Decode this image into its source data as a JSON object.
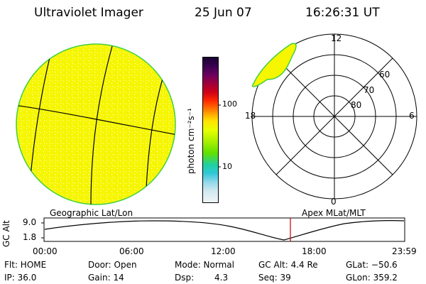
{
  "header": {
    "title": "Ultraviolet Imager",
    "date": "25 Jun 07",
    "time": "16:26:31 UT"
  },
  "colorbar": {
    "unit_label": "photon cm⁻²s⁻¹",
    "ticks": [
      "100",
      "10"
    ],
    "colors": [
      "#1a0033",
      "#3a0050",
      "#6a0060",
      "#a0003a",
      "#d00018",
      "#ff2a00",
      "#ff7a00",
      "#ffb400",
      "#ffe400",
      "#e8ff00",
      "#a8f000",
      "#60e000",
      "#20d0a0",
      "#30c8d8",
      "#90d8e8",
      "#d0e8f0",
      "#f0f4f8"
    ]
  },
  "left_map": {
    "caption": "Geographic Lat/Lon",
    "fill_color": "#f6f600",
    "edge_color": "#40d040"
  },
  "polar_plot": {
    "caption": "Apex MLat/MLT",
    "mlt_labels": {
      "top": "12",
      "bottom": "0",
      "left": "18",
      "right": "6"
    },
    "lat_labels": [
      "60",
      "70",
      "80"
    ]
  },
  "altitude_plot": {
    "axis_label": "GC Alt",
    "y_ticks": [
      "9.0",
      "1.8"
    ],
    "x_ticks": [
      "00:00",
      "06:00",
      "12:00",
      "18:00",
      "23:59"
    ],
    "marker_color": "#c00000"
  },
  "info": {
    "row1": {
      "flt": "Flt: HOME",
      "door": "Door: Open",
      "mode": "Mode: Normal",
      "gc_alt": "GC Alt: 4.4 Re",
      "glat": "GLat: −50.6"
    },
    "row2": {
      "ip": "IP: 36.0",
      "gain": "Gain: 14",
      "dsp_label": "Dsp:",
      "dsp_value": "4.3",
      "seq": "Seq: 39",
      "glon": "GLon: 359.2"
    }
  }
}
